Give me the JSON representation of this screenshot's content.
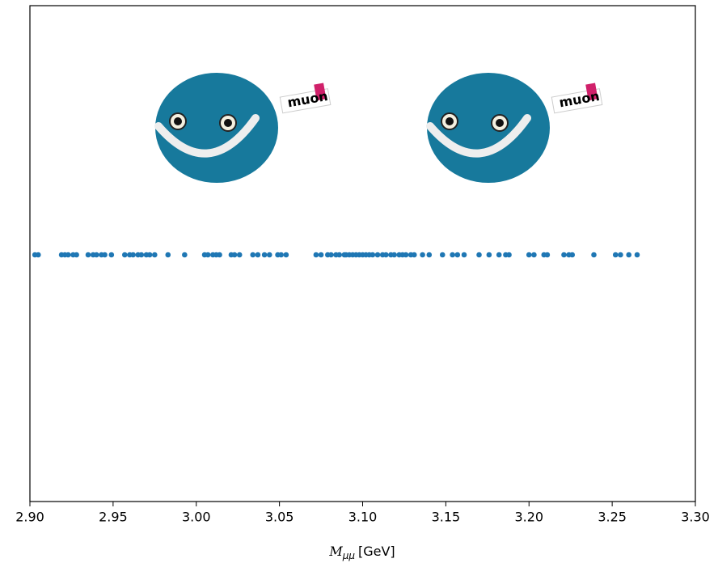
{
  "chart_data": {
    "type": "strip",
    "mascots": [
      "muon",
      "muon"
    ],
    "x": [
      2.903,
      2.905,
      2.919,
      2.921,
      2.923,
      2.926,
      2.928,
      2.935,
      2.938,
      2.94,
      2.943,
      2.945,
      2.949,
      2.957,
      2.96,
      2.962,
      2.965,
      2.967,
      2.97,
      2.972,
      2.975,
      2.983,
      2.993,
      3.005,
      3.007,
      3.01,
      3.012,
      3.014,
      3.021,
      3.023,
      3.026,
      3.034,
      3.037,
      3.041,
      3.044,
      3.049,
      3.051,
      3.054,
      3.072,
      3.075,
      3.079,
      3.081,
      3.084,
      3.086,
      3.089,
      3.09,
      3.092,
      3.094,
      3.096,
      3.098,
      3.1,
      3.102,
      3.104,
      3.106,
      3.109,
      3.112,
      3.114,
      3.117,
      3.119,
      3.122,
      3.124,
      3.126,
      3.129,
      3.131,
      3.136,
      3.14,
      3.148,
      3.154,
      3.157,
      3.161,
      3.17,
      3.176,
      3.182,
      3.186,
      3.188,
      3.2,
      3.203,
      3.209,
      3.211,
      3.221,
      3.224,
      3.226,
      3.239,
      3.252,
      3.255,
      3.26,
      3.265
    ],
    "color": "#1f77b4",
    "xlim": [
      2.9,
      3.3
    ],
    "xticks": [
      {
        "value": 2.9,
        "label": "2.90"
      },
      2.95,
      {
        "value": 3.0,
        "label": "3.00"
      },
      3.05,
      {
        "value": 3.1,
        "label": "3.10"
      },
      3.15,
      {
        "value": 3.2,
        "label": "3.20"
      },
      3.25,
      {
        "value": 3.3,
        "label": "3.30"
      }
    ],
    "xlabel": {
      "symbol": "M",
      "subscript": "μμ",
      "unit": "[GeV]"
    }
  }
}
